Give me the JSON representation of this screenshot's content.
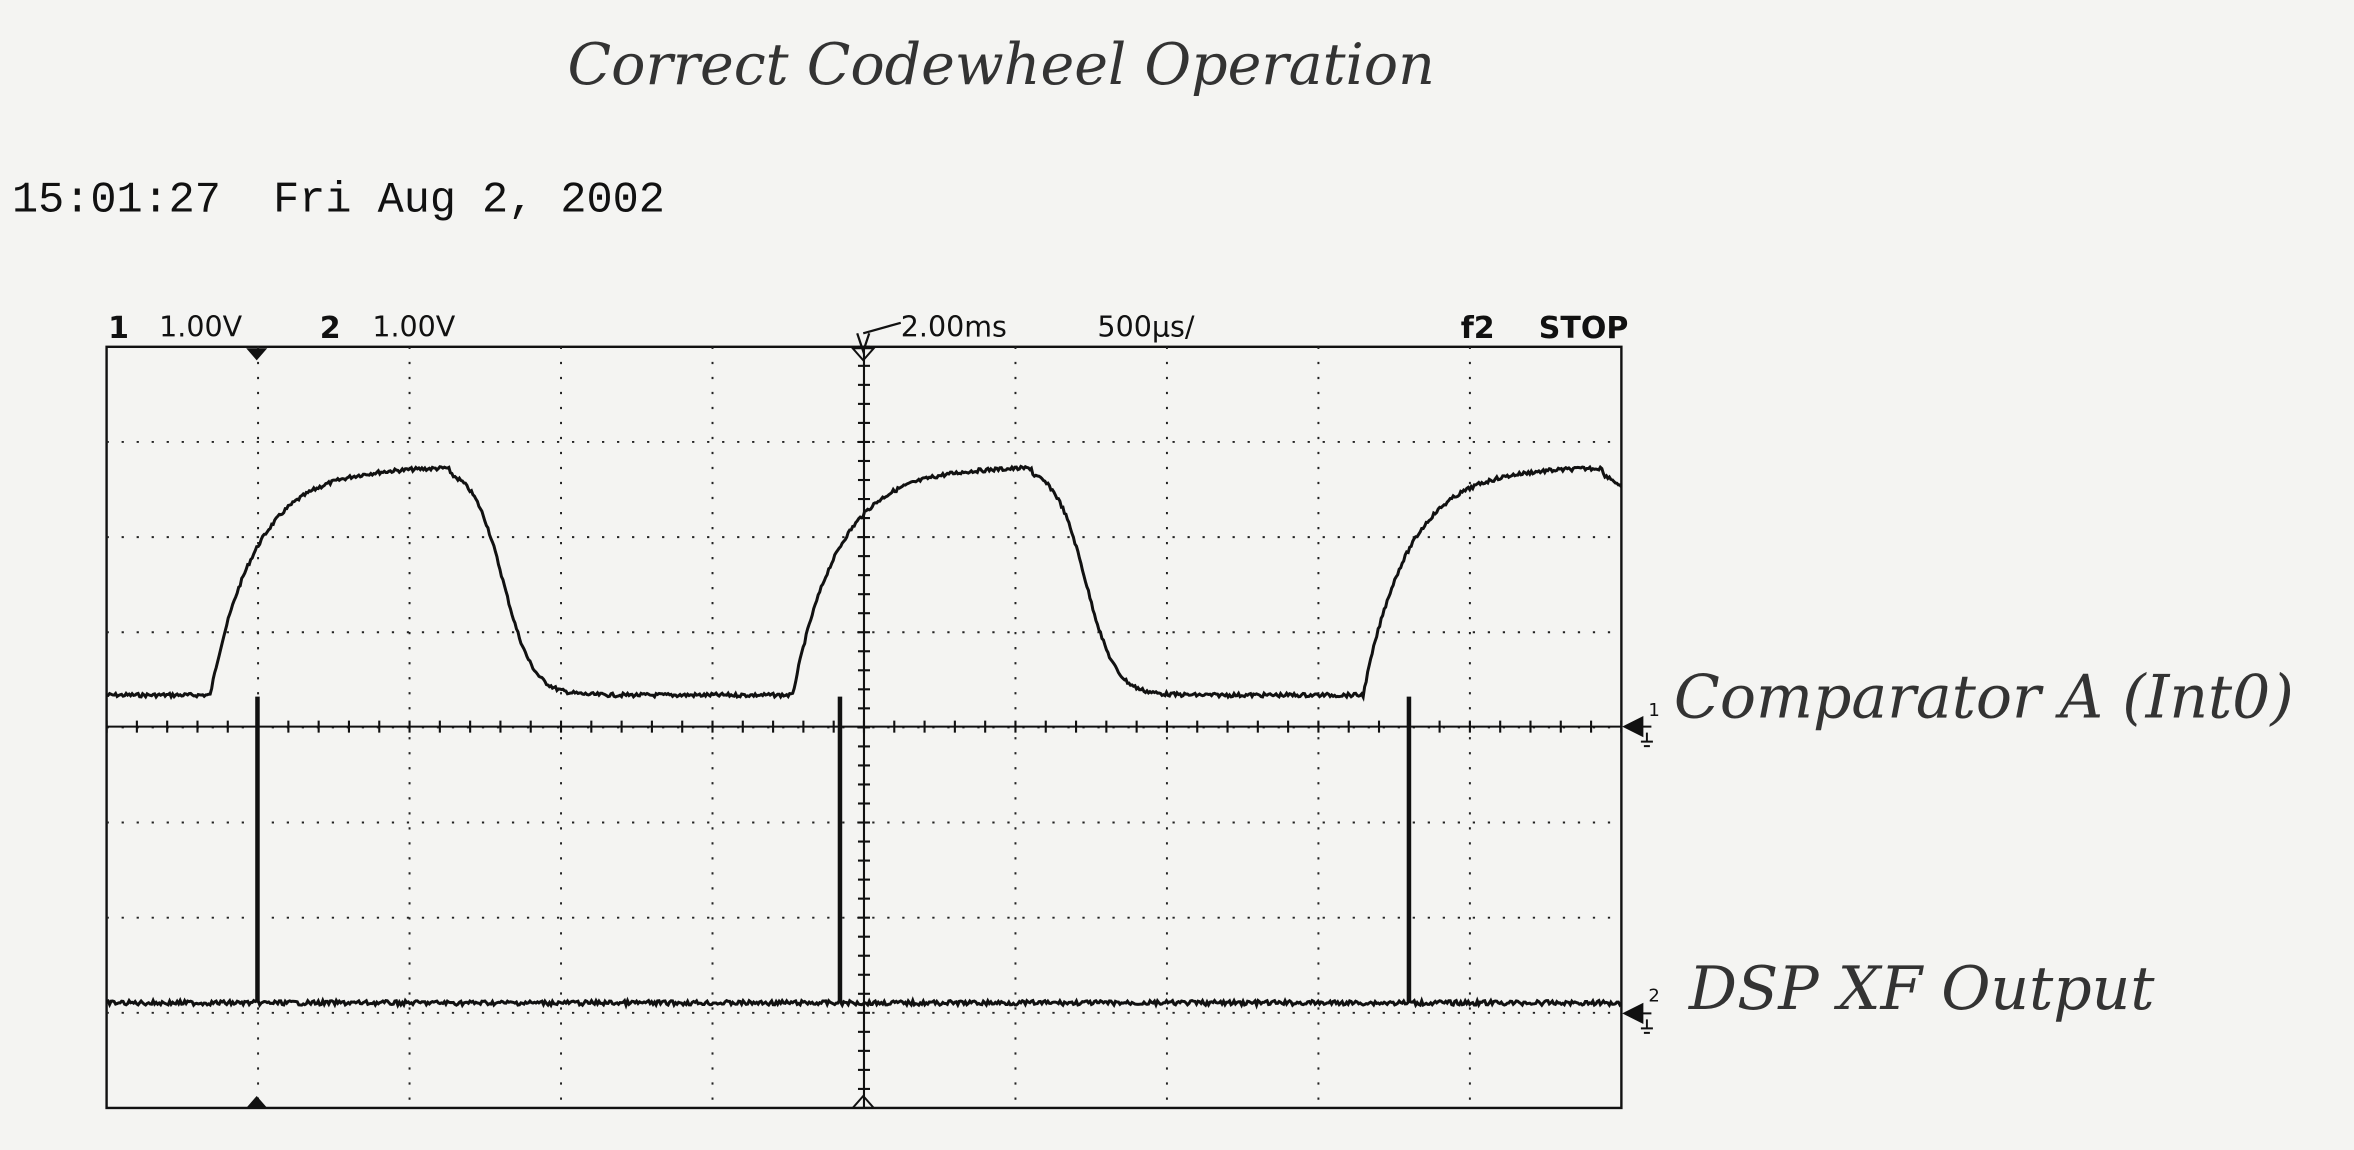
{
  "title": "Correct Codewheel Operation",
  "timestamp": "15:01:27  Fri Aug 2, 2002",
  "scope": {
    "ch1": {
      "number": "1",
      "scale": "1.00V"
    },
    "ch2": {
      "number": "2",
      "scale": "1.00V"
    },
    "delay": "2.00ms",
    "timebase": "500µs/",
    "trigger": "f2",
    "status": "STOP"
  },
  "traces": [
    {
      "marker": "1",
      "label": "Comparator A (Int0)"
    },
    {
      "marker": "2",
      "label": "DSP XF Output"
    }
  ]
}
